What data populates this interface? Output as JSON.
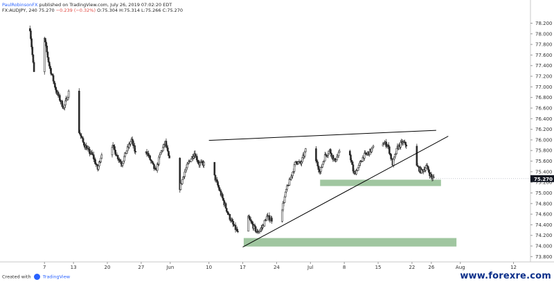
{
  "header": {
    "author": "PaulRobinsonFX",
    "published": "published on TradingView.com, July 26, 2019 07:02:20 EDT",
    "symbol": "FX:AUDJPY, 240",
    "last": "75.270",
    "change": "−0.239 (−0.32%)",
    "ohlc": "O:75.304 H:75.314 L:75.266 C:75.270"
  },
  "footer": {
    "created_with": "Created with",
    "brand": "TradingView",
    "watermark": "www.forexre.com"
  },
  "colors": {
    "candle": "#2b2b2b",
    "zone": "#8fbc8f",
    "price_badge": "#131722",
    "line": "#000000"
  },
  "chart_data": {
    "type": "candlestick",
    "symbol": "FX:AUDJPY",
    "timeframe": "240",
    "ylim": [
      73.7,
      78.35
    ],
    "y_ticks": [
      "78.200",
      "78.000",
      "77.800",
      "77.600",
      "77.400",
      "77.200",
      "77.000",
      "76.800",
      "76.600",
      "76.400",
      "76.200",
      "76.000",
      "75.800",
      "75.600",
      "75.400",
      "75.200",
      "75.000",
      "74.800",
      "74.600",
      "74.400",
      "74.200",
      "74.000",
      "73.800"
    ],
    "x_ticks": [
      "7",
      "13",
      "20",
      "27",
      "Jun",
      "10",
      "17",
      "24",
      "Jul",
      "8",
      "15",
      "22",
      "26",
      "Aug",
      "12"
    ],
    "x_tick_days": [
      7,
      13,
      20,
      27,
      33,
      41,
      48,
      55,
      62,
      69,
      76,
      83,
      87,
      93,
      104
    ],
    "last_price": "75.270",
    "close_path": [
      [
        4.0,
        78.1
      ],
      [
        5.0,
        77.1
      ],
      [
        6.0,
        77.55
      ],
      [
        7.0,
        77.9
      ],
      [
        8.0,
        77.4
      ],
      [
        9.5,
        76.9
      ],
      [
        11.0,
        76.6
      ],
      [
        12.0,
        76.9
      ],
      [
        13.0,
        76.45
      ],
      [
        14.0,
        76.2
      ],
      [
        15.0,
        75.95
      ],
      [
        16.0,
        75.8
      ],
      [
        17.0,
        75.7
      ],
      [
        18.0,
        75.45
      ],
      [
        19.0,
        75.8
      ],
      [
        20.0,
        76.25
      ],
      [
        21.0,
        75.9
      ],
      [
        22.0,
        75.7
      ],
      [
        23.0,
        75.55
      ],
      [
        24.0,
        75.8
      ],
      [
        25.0,
        76.0
      ],
      [
        26.0,
        75.7
      ],
      [
        27.0,
        75.5
      ],
      [
        28.0,
        75.8
      ],
      [
        29.0,
        75.6
      ],
      [
        30.0,
        75.4
      ],
      [
        31.0,
        75.75
      ],
      [
        32.0,
        75.95
      ],
      [
        33.0,
        75.55
      ],
      [
        34.0,
        75.4
      ],
      [
        35.0,
        75.1
      ],
      [
        36.0,
        75.4
      ],
      [
        37.0,
        75.6
      ],
      [
        38.0,
        75.75
      ],
      [
        39.0,
        75.55
      ],
      [
        40.0,
        75.55
      ],
      [
        41.0,
        75.75
      ],
      [
        42.0,
        75.35
      ],
      [
        43.0,
        75.1
      ],
      [
        44.0,
        74.85
      ],
      [
        45.0,
        74.6
      ],
      [
        46.0,
        74.4
      ],
      [
        47.0,
        74.25
      ],
      [
        48.0,
        74.15
      ],
      [
        48.6,
        74.45
      ],
      [
        49.0,
        74.55
      ],
      [
        50.0,
        74.4
      ],
      [
        51.0,
        74.25
      ],
      [
        52.0,
        74.35
      ],
      [
        53.0,
        74.55
      ],
      [
        54.0,
        74.5
      ],
      [
        55.0,
        74.8
      ],
      [
        56.0,
        74.65
      ],
      [
        57.0,
        75.05
      ],
      [
        58.0,
        75.3
      ],
      [
        59.0,
        75.6
      ],
      [
        60.0,
        75.55
      ],
      [
        61.0,
        75.8
      ],
      [
        62.0,
        76.0
      ],
      [
        63.0,
        75.65
      ],
      [
        64.0,
        75.4
      ],
      [
        65.0,
        75.7
      ],
      [
        66.0,
        75.8
      ],
      [
        67.0,
        75.6
      ],
      [
        68.0,
        75.75
      ],
      [
        69.0,
        75.55
      ],
      [
        70.0,
        75.8
      ],
      [
        71.0,
        75.35
      ],
      [
        72.0,
        75.5
      ],
      [
        73.0,
        75.7
      ],
      [
        74.0,
        75.75
      ],
      [
        75.0,
        75.85
      ],
      [
        76.0,
        75.95
      ],
      [
        77.0,
        75.95
      ],
      [
        78.0,
        75.9
      ],
      [
        79.0,
        75.55
      ],
      [
        80.0,
        75.85
      ],
      [
        81.0,
        75.95
      ],
      [
        82.0,
        75.9
      ],
      [
        83.0,
        75.85
      ],
      [
        84.0,
        75.5
      ],
      [
        85.0,
        75.4
      ],
      [
        86.0,
        75.5
      ],
      [
        87.0,
        75.3
      ],
      [
        87.6,
        75.27
      ]
    ],
    "drawings": {
      "resistance_line": {
        "from": [
          41.0,
          75.99
        ],
        "to": [
          88.0,
          76.18
        ]
      },
      "support_line": {
        "from": [
          48.0,
          73.98
        ],
        "to": [
          90.5,
          76.07
        ]
      },
      "zones": [
        {
          "x": [
            64.0,
            89.0
          ],
          "y": [
            75.13,
            75.25
          ]
        },
        {
          "x": [
            48.2,
            92.2
          ],
          "y": [
            73.99,
            74.15
          ]
        }
      ]
    }
  }
}
